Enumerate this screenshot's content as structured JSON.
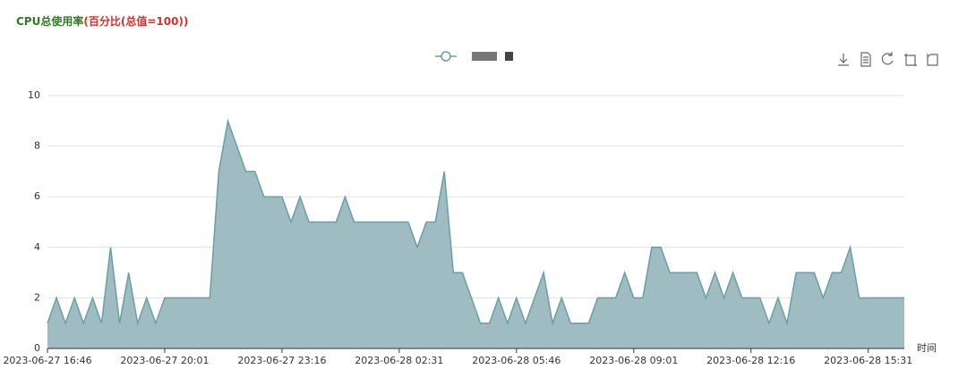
{
  "chart_data": {
    "type": "area",
    "title": "CPU总使用率",
    "title_suffix": "(百分比(总值=100))",
    "x_label": "时间",
    "categories": [
      "2023-06-27 16:46",
      null,
      null,
      null,
      null,
      null,
      null,
      null,
      null,
      null,
      null,
      null,
      null,
      "2023-06-27 20:01",
      null,
      null,
      null,
      null,
      null,
      null,
      null,
      null,
      null,
      null,
      null,
      null,
      "2023-06-27 23:16",
      null,
      null,
      null,
      null,
      null,
      null,
      null,
      null,
      null,
      null,
      null,
      null,
      "2023-06-28 02:31",
      null,
      null,
      null,
      null,
      null,
      null,
      null,
      null,
      null,
      null,
      null,
      null,
      "2023-06-28 05:46",
      null,
      null,
      null,
      null,
      null,
      null,
      null,
      null,
      null,
      null,
      null,
      null,
      "2023-06-28 09:01",
      null,
      null,
      null,
      null,
      null,
      null,
      null,
      null,
      null,
      null,
      null,
      null,
      "2023-06-28 12:16",
      null,
      null,
      null,
      null,
      null,
      null,
      null,
      null,
      null,
      null,
      null,
      null,
      "2023-06-28 15:31",
      null,
      null,
      null,
      null
    ],
    "series": [
      {
        "color": "#6a9fa5",
        "fill": "#9ebcc2",
        "values": [
          1,
          2,
          1,
          2,
          1,
          2,
          1,
          4,
          1,
          3,
          1,
          2,
          1,
          2,
          2,
          2,
          2,
          2,
          2,
          7,
          9,
          8,
          7,
          7,
          6,
          6,
          6,
          5,
          6,
          5,
          5,
          5,
          5,
          6,
          5,
          5,
          5,
          5,
          5,
          5,
          5,
          4,
          5,
          5,
          7,
          3,
          3,
          2,
          1,
          1,
          2,
          1,
          2,
          1,
          2,
          3,
          1,
          2,
          1,
          1,
          1,
          2,
          2,
          2,
          3,
          2,
          2,
          4,
          4,
          3,
          3,
          3,
          3,
          2,
          3,
          2,
          3,
          2,
          2,
          2,
          1,
          2,
          1,
          3,
          3,
          3,
          2,
          3,
          3,
          4,
          2,
          2,
          2,
          2,
          2,
          2
        ]
      }
    ],
    "ylim": [
      0,
      10
    ],
    "yticks": [
      0,
      2,
      4,
      6,
      8,
      10
    ],
    "grid": true
  }
}
